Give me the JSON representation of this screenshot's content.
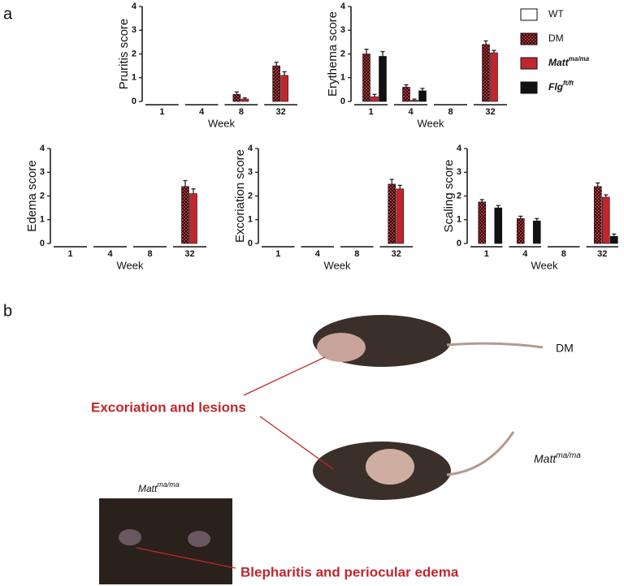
{
  "panel_a": "a",
  "panel_b": "b",
  "legend": [
    {
      "name": "WT",
      "style": "open",
      "color": "#ffffff"
    },
    {
      "name": "DM",
      "style": "checker",
      "color": "#c0272d"
    },
    {
      "name": "Matt",
      "sup": "ma/ma",
      "style": "solid",
      "color": "#c0272d"
    },
    {
      "name": "Flg",
      "sup": "ft/ft",
      "style": "solid",
      "color": "#111111"
    }
  ],
  "chart_data": [
    {
      "type": "bar",
      "y_label": "Pruritis score",
      "x_label": "Week",
      "categories": [
        "1",
        "4",
        "8",
        "32"
      ],
      "ylim": [
        0,
        4
      ],
      "yticks": [
        0,
        1,
        2,
        3,
        4
      ],
      "series": [
        {
          "values": [
            0,
            0,
            0,
            0
          ],
          "errors": [
            0,
            0,
            0,
            0
          ]
        },
        {
          "values": [
            0,
            0,
            0.3,
            1.5
          ],
          "errors": [
            0,
            0,
            0.1,
            0.15
          ]
        },
        {
          "values": [
            0,
            0,
            0.1,
            1.1
          ],
          "errors": [
            0,
            0,
            0.05,
            0.15
          ]
        },
        {
          "values": [
            0,
            0,
            0,
            0
          ],
          "errors": [
            0,
            0,
            0,
            0
          ]
        }
      ]
    },
    {
      "type": "bar",
      "y_label": "Erythema score",
      "x_label": "Week",
      "categories": [
        "1",
        "4",
        "8",
        "32"
      ],
      "ylim": [
        0,
        4
      ],
      "yticks": [
        0,
        1,
        2,
        3,
        4
      ],
      "series": [
        {
          "values": [
            0,
            0,
            0,
            0
          ],
          "errors": [
            0,
            0,
            0,
            0
          ]
        },
        {
          "values": [
            2.0,
            0.6,
            0,
            2.4
          ],
          "errors": [
            0.2,
            0.1,
            0,
            0.15
          ]
        },
        {
          "values": [
            0.2,
            0.05,
            0,
            2.05
          ],
          "errors": [
            0.1,
            0.05,
            0,
            0.1
          ]
        },
        {
          "values": [
            1.9,
            0.45,
            0,
            0
          ],
          "errors": [
            0.2,
            0.1,
            0,
            0
          ]
        }
      ]
    },
    {
      "type": "bar",
      "y_label": "Edema score",
      "x_label": "Week",
      "categories": [
        "1",
        "4",
        "8",
        "32"
      ],
      "ylim": [
        0,
        4
      ],
      "yticks": [
        0,
        1,
        2,
        3,
        4
      ],
      "series": [
        {
          "values": [
            0,
            0,
            0,
            0
          ],
          "errors": [
            0,
            0,
            0,
            0
          ]
        },
        {
          "values": [
            0,
            0,
            0,
            2.4
          ],
          "errors": [
            0,
            0,
            0,
            0.25
          ]
        },
        {
          "values": [
            0,
            0,
            0,
            2.1
          ],
          "errors": [
            0,
            0,
            0,
            0.2
          ]
        },
        {
          "values": [
            0,
            0,
            0,
            0
          ],
          "errors": [
            0,
            0,
            0,
            0
          ]
        }
      ]
    },
    {
      "type": "bar",
      "y_label": "Excoriation score",
      "x_label": "Week",
      "categories": [
        "1",
        "4",
        "8",
        "32"
      ],
      "ylim": [
        0,
        4
      ],
      "yticks": [
        0,
        1,
        2,
        3,
        4
      ],
      "series": [
        {
          "values": [
            0,
            0,
            0,
            0
          ],
          "errors": [
            0,
            0,
            0,
            0
          ]
        },
        {
          "values": [
            0,
            0,
            0,
            2.5
          ],
          "errors": [
            0,
            0,
            0,
            0.2
          ]
        },
        {
          "values": [
            0,
            0,
            0,
            2.3
          ],
          "errors": [
            0,
            0,
            0,
            0.15
          ]
        },
        {
          "values": [
            0,
            0,
            0,
            0
          ],
          "errors": [
            0,
            0,
            0,
            0
          ]
        }
      ]
    },
    {
      "type": "bar",
      "y_label": "Scaling score",
      "x_label": "Week",
      "categories": [
        "1",
        "4",
        "8",
        "32"
      ],
      "ylim": [
        0,
        4
      ],
      "yticks": [
        0,
        1,
        2,
        3,
        4
      ],
      "series": [
        {
          "values": [
            0,
            0,
            0,
            0
          ],
          "errors": [
            0,
            0,
            0,
            0
          ]
        },
        {
          "values": [
            1.75,
            1.05,
            0,
            2.4
          ],
          "errors": [
            0.1,
            0.1,
            0,
            0.15
          ]
        },
        {
          "values": [
            0,
            0,
            0,
            1.95
          ],
          "errors": [
            0,
            0,
            0,
            0.1
          ]
        },
        {
          "values": [
            1.5,
            0.95,
            0,
            0.3
          ],
          "errors": [
            0.1,
            0.1,
            0,
            0.1
          ]
        }
      ]
    }
  ],
  "photos": {
    "top_label": "DM",
    "bottom_label": {
      "name": "Matt",
      "sup": "ma/ma"
    },
    "eye_label": {
      "name": "Matt",
      "sup": "ma/ma"
    },
    "callout_1": "Excoriation and lesions",
    "callout_2": "Blepharitis and periocular edema"
  }
}
